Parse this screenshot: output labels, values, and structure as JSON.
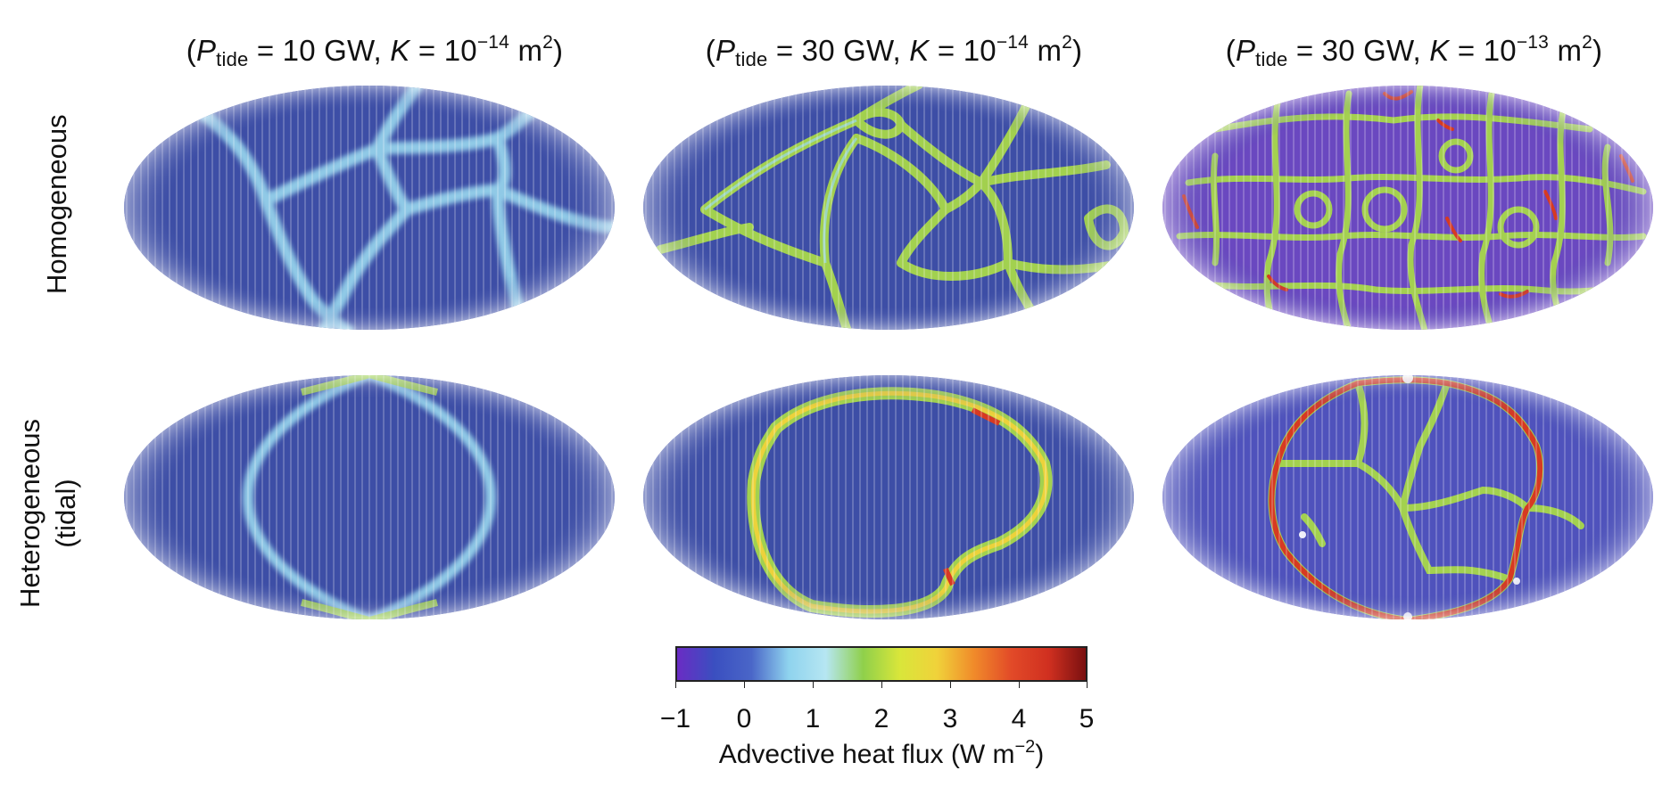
{
  "columns": [
    {
      "p_var": "P",
      "p_sub": "tide",
      "p_val": "= 10 GW,",
      "k_var": "K",
      "k_val": "= 10",
      "k_exp": "−14",
      "k_unit": "m",
      "k_unit_exp": "2"
    },
    {
      "p_var": "P",
      "p_sub": "tide",
      "p_val": "= 30 GW,",
      "k_var": "K",
      "k_val": "= 10",
      "k_exp": "−14",
      "k_unit": "m",
      "k_unit_exp": "2"
    },
    {
      "p_var": "P",
      "p_sub": "tide",
      "p_val": "= 30 GW,",
      "k_var": "K",
      "k_val": "= 10",
      "k_exp": "−13",
      "k_unit": "m",
      "k_unit_exp": "2"
    }
  ],
  "rows": [
    {
      "label": "Homogeneous",
      "label_line2": ""
    },
    {
      "label": "Heterogeneous",
      "label_line2": "(tidal)"
    }
  ],
  "colorbar": {
    "title": "Advective heat flux (W m",
    "title_exp": "−2",
    "title_close": ")",
    "ticks": [
      "−1",
      "0",
      "1",
      "2",
      "3",
      "4",
      "5"
    ],
    "range": [
      -1,
      5
    ],
    "stops": [
      "#6a2cc4",
      "#3a4fc0",
      "#4a66c8",
      "#8fd3ee",
      "#b6e6f2",
      "#8fd04b",
      "#d9e63a",
      "#f0d23a",
      "#f08a2a",
      "#e24a28",
      "#d03020",
      "#7a1010"
    ]
  },
  "colors": {
    "background": "#3d4ea6",
    "ridge_light": "#9ad8ee",
    "ridge_green": "#a8d84a",
    "ridge_red": "#d63a22",
    "purple_bg": "#6a48c0"
  }
}
